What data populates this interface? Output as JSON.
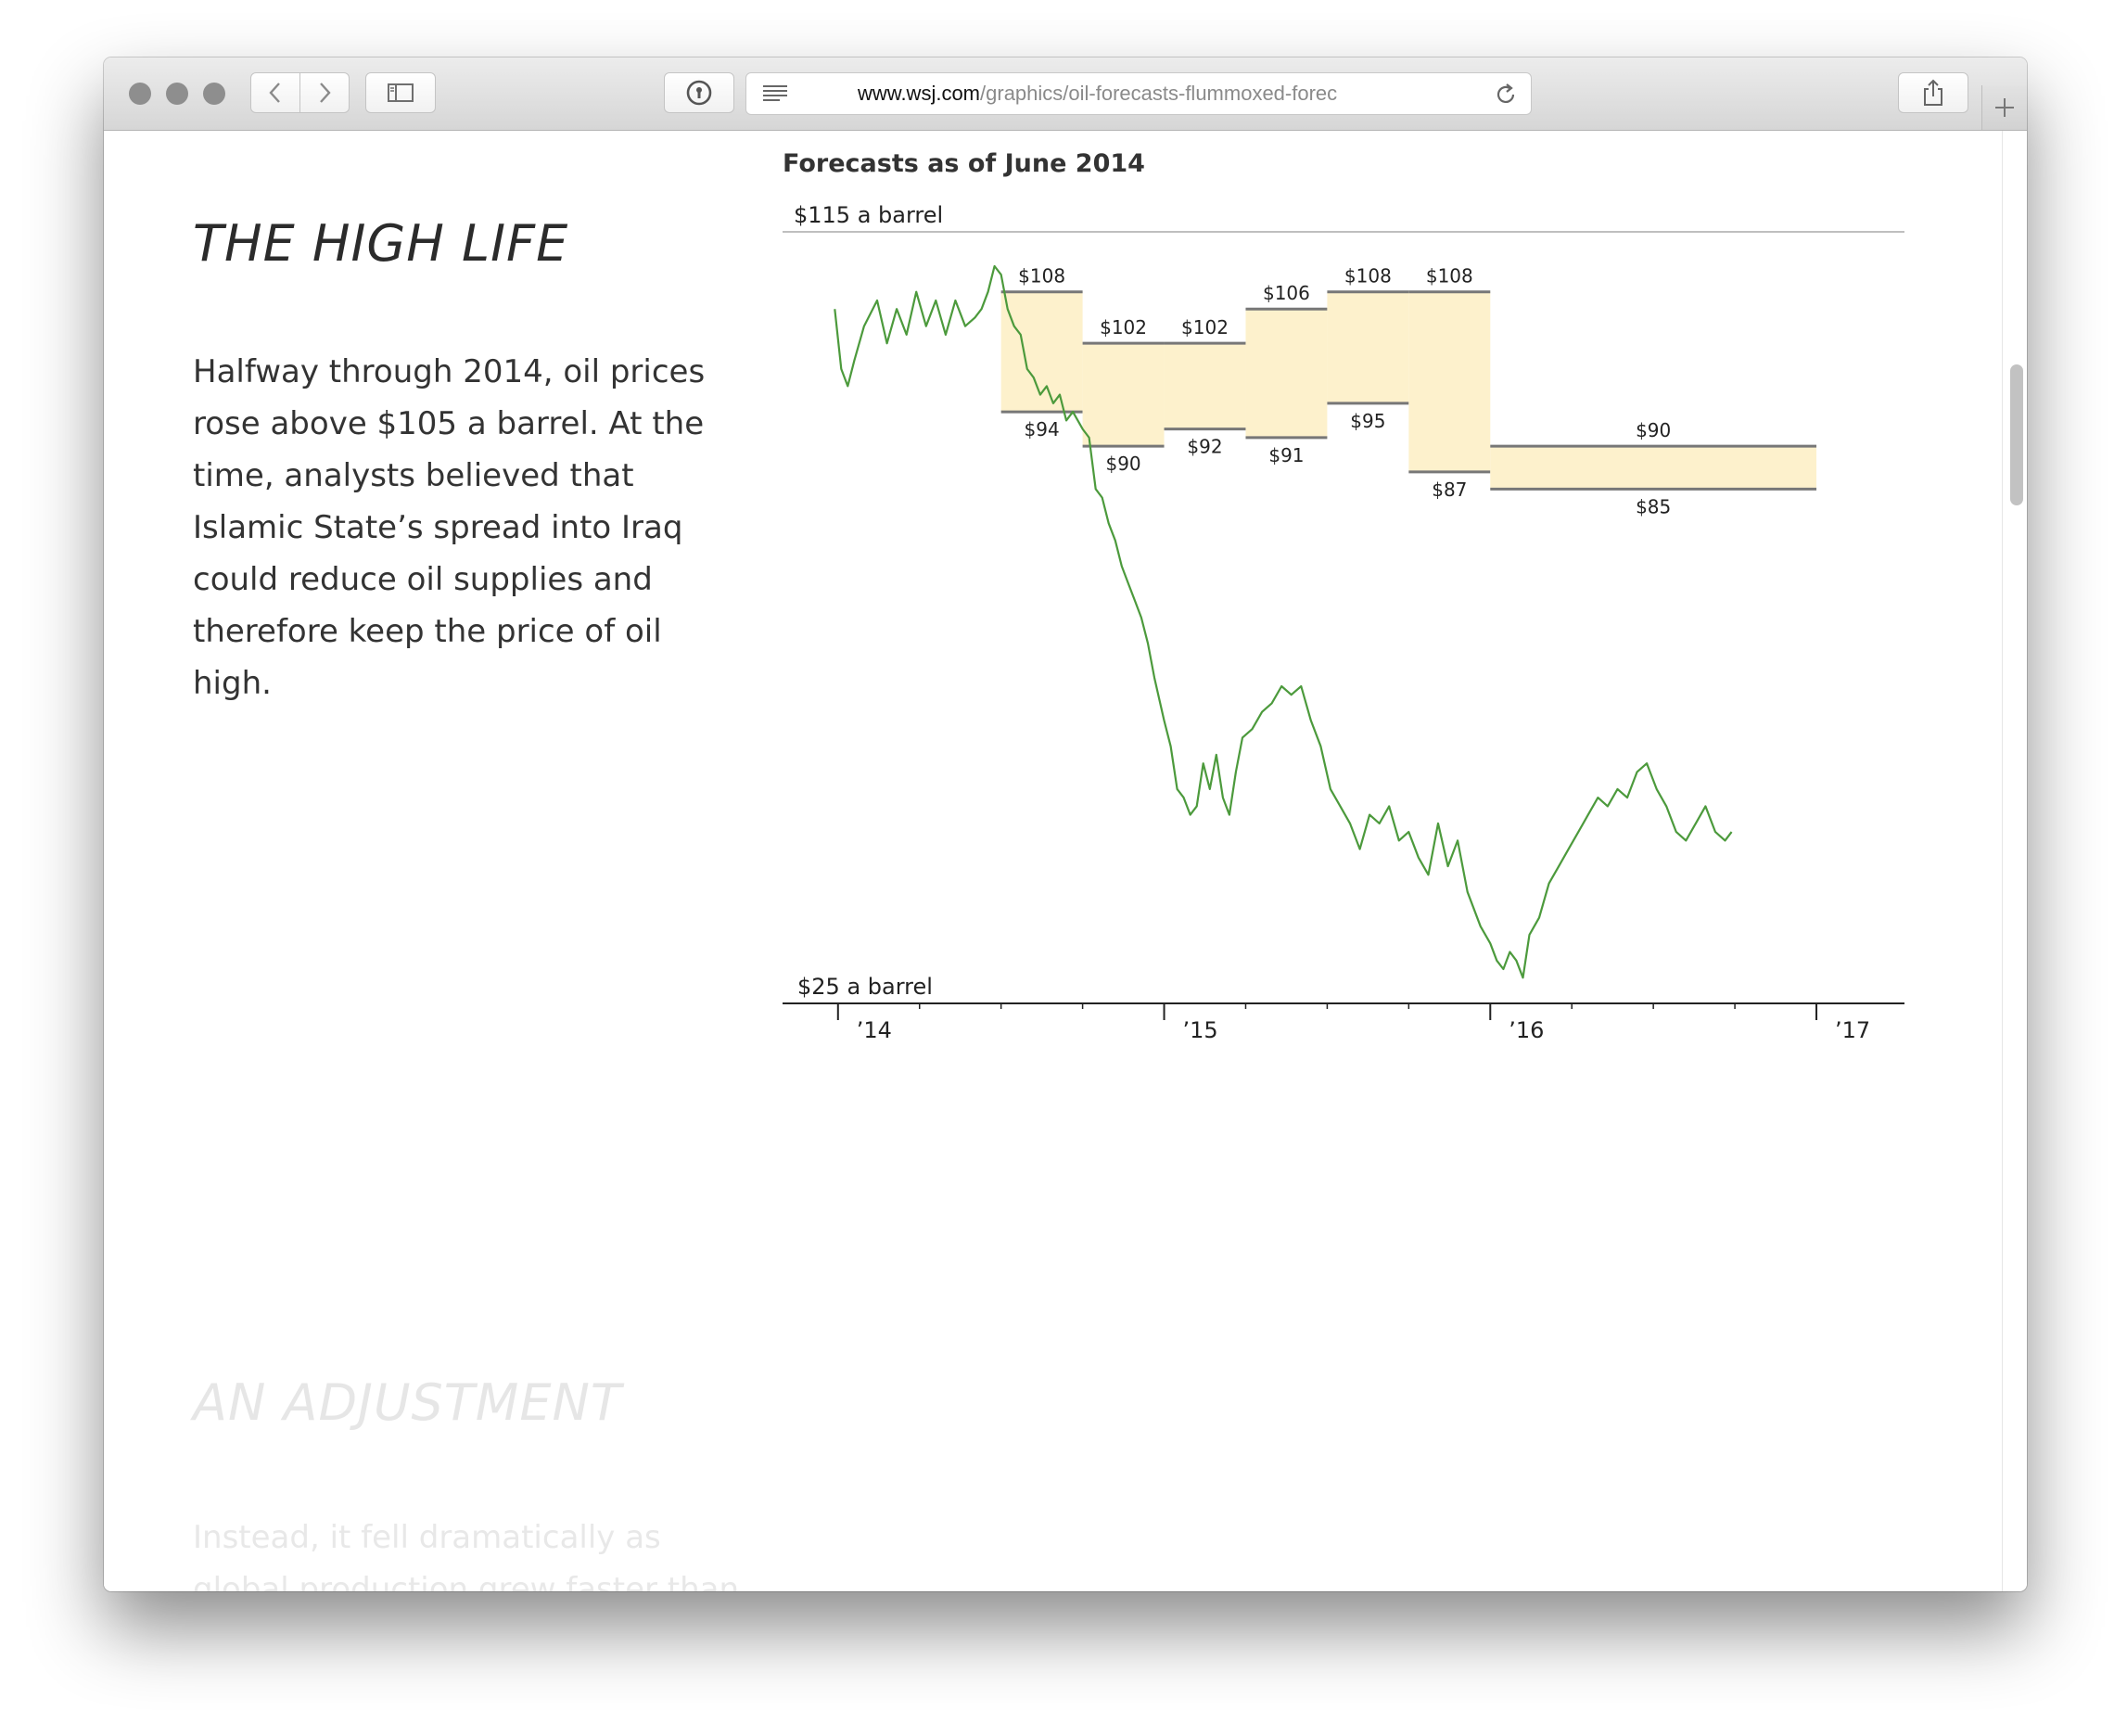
{
  "browser": {
    "url_host": "www.wsj.com",
    "url_path": "/graphics/oil-forecasts-flummoxed-forec"
  },
  "article": {
    "section1": {
      "title": "THE HIGH LIFE",
      "body": "Halfway through 2014, oil prices rose above $105 a barrel. At the time, analysts believed that Islamic State’s spread into Iraq could reduce oil supplies and therefore keep the price of oil high."
    },
    "section2": {
      "title": "AN ADJUSTMENT",
      "body": "Instead, it fell dramatically as global production grew faster than"
    }
  },
  "colors": {
    "price_line": "#4c9a3c",
    "forecast_band": "#fdf1cc",
    "forecast_edge": "#777777"
  },
  "chart_data": {
    "type": "line",
    "title": "Forecasts as of June 2014",
    "ytop_label": "$115 a barrel",
    "ybottom_label": "$25 a barrel",
    "ylim": [
      25,
      115
    ],
    "xlim": [
      2013.83,
      2017.27
    ],
    "x_ticks": [
      {
        "x": 2014,
        "label": "’14"
      },
      {
        "x": 2015,
        "label": "’15"
      },
      {
        "x": 2016,
        "label": "’16"
      },
      {
        "x": 2017,
        "label": "’17"
      }
    ],
    "x_minor_ticks": [
      2014.25,
      2014.5,
      2014.75,
      2015.25,
      2015.5,
      2015.75,
      2016.25,
      2016.5,
      2016.75
    ],
    "forecast_ranges": [
      {
        "period": "2014 Q3",
        "x0": 2014.5,
        "x1": 2014.75,
        "high": 108,
        "low": 94,
        "high_label": "$108",
        "low_label": "$94"
      },
      {
        "period": "2014 Q4",
        "x0": 2014.75,
        "x1": 2015.0,
        "high": 102,
        "low": 90,
        "high_label": "$102",
        "low_label": "$90"
      },
      {
        "period": "2015 Q1",
        "x0": 2015.0,
        "x1": 2015.25,
        "high": 102,
        "low": 92,
        "high_label": "$102",
        "low_label": "$92"
      },
      {
        "period": "2015 Q2",
        "x0": 2015.25,
        "x1": 2015.5,
        "high": 106,
        "low": 91,
        "high_label": "$106",
        "low_label": "$91"
      },
      {
        "period": "2015 Q3",
        "x0": 2015.5,
        "x1": 2015.75,
        "high": 108,
        "low": 95,
        "high_label": "$108",
        "low_label": "$95"
      },
      {
        "period": "2015 Q4",
        "x0": 2015.75,
        "x1": 2016.0,
        "high": 108,
        "low": 87,
        "high_label": "$108",
        "low_label": "$87"
      },
      {
        "period": "2016",
        "x0": 2016.0,
        "x1": 2017.0,
        "high": 90,
        "low": 85,
        "high_label": "$90",
        "low_label": "$85"
      }
    ],
    "price_series": {
      "x": [
        2013.99,
        2014.01,
        2014.03,
        2014.05,
        2014.08,
        2014.12,
        2014.15,
        2014.18,
        2014.21,
        2014.24,
        2014.27,
        2014.3,
        2014.33,
        2014.36,
        2014.39,
        2014.42,
        2014.44,
        2014.46,
        2014.48,
        2014.5,
        2014.52,
        2014.54,
        2014.56,
        2014.58,
        2014.6,
        2014.62,
        2014.64,
        2014.66,
        2014.68,
        2014.7,
        2014.72,
        2014.75,
        2014.77,
        2014.79,
        2014.81,
        2014.83,
        2014.85,
        2014.87,
        2014.89,
        2014.91,
        2014.93,
        2014.95,
        2014.97,
        2015.0,
        2015.02,
        2015.04,
        2015.06,
        2015.08,
        2015.1,
        2015.12,
        2015.14,
        2015.16,
        2015.18,
        2015.2,
        2015.22,
        2015.24,
        2015.27,
        2015.3,
        2015.33,
        2015.36,
        2015.39,
        2015.42,
        2015.45,
        2015.48,
        2015.51,
        2015.54,
        2015.57,
        2015.6,
        2015.63,
        2015.66,
        2015.69,
        2015.72,
        2015.75,
        2015.78,
        2015.81,
        2015.84,
        2015.87,
        2015.9,
        2015.93,
        2015.95,
        2015.97,
        2016.0,
        2016.02,
        2016.04,
        2016.06,
        2016.08,
        2016.1,
        2016.12,
        2016.15,
        2016.18,
        2016.21,
        2016.24,
        2016.27,
        2016.3,
        2016.33,
        2016.36,
        2016.39,
        2016.42,
        2016.45,
        2016.48,
        2016.51,
        2016.54,
        2016.57,
        2016.6,
        2016.63,
        2016.66,
        2016.69,
        2016.72,
        2016.74
      ],
      "y": [
        106,
        99,
        97,
        100,
        104,
        107,
        102,
        106,
        103,
        108,
        104,
        107,
        103,
        107,
        104,
        105,
        106,
        108,
        111,
        110,
        106,
        104,
        103,
        99,
        98,
        96,
        97,
        95,
        96,
        93,
        94,
        92,
        91,
        85,
        84,
        81,
        79,
        76,
        74,
        72,
        70,
        67,
        63,
        58,
        55,
        50,
        49,
        47,
        48,
        53,
        50,
        54,
        49,
        47,
        52,
        56,
        57,
        59,
        60,
        62,
        61,
        62,
        58,
        55,
        50,
        48,
        46,
        43,
        47,
        46,
        48,
        44,
        45,
        42,
        40,
        46,
        41,
        44,
        38,
        36,
        34,
        32,
        30,
        29,
        31,
        30,
        28,
        33,
        35,
        39,
        41,
        43,
        45,
        47,
        49,
        48,
        50,
        49,
        52,
        53,
        50,
        48,
        45,
        44,
        46,
        48,
        45,
        44,
        45
      ]
    }
  }
}
